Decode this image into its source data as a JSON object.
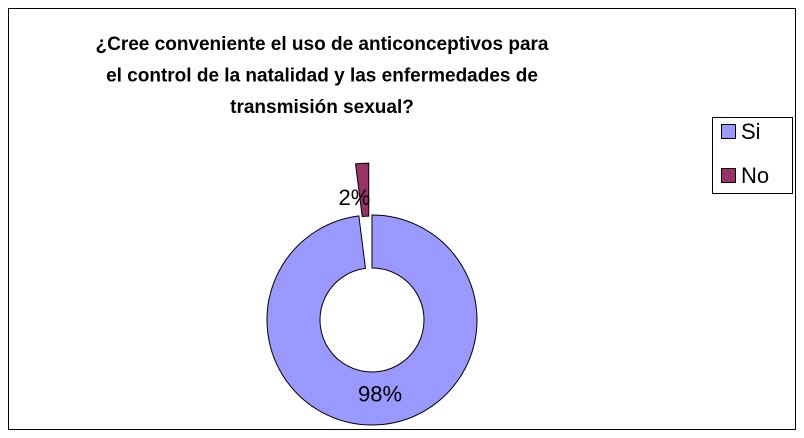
{
  "chart_data": {
    "type": "doughnut",
    "title": "¿Cree conveniente el uso de anticonceptivos para el control de la natalidad y las enfermedades de transmisión sexual?",
    "title_lines": [
      "¿Cree conveniente el uso de anticonceptivos para",
      "el control de la natalidad y las enfermedades de",
      "transmisión sexual?"
    ],
    "categories": [
      "Si",
      "No"
    ],
    "values": [
      98,
      2
    ],
    "value_labels": [
      "98%",
      "2%"
    ],
    "colors": [
      "#9999ff",
      "#993366"
    ],
    "exploded": [
      false,
      true
    ],
    "legend": "right"
  }
}
